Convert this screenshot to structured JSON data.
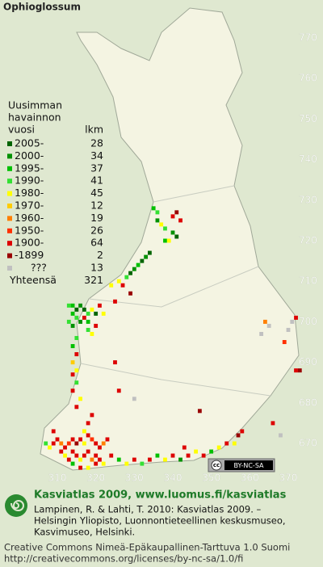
{
  "title": "Ophioglossum",
  "legend": {
    "header": [
      "Uusimman",
      "havainnon",
      "vuosi"
    ],
    "count_header": "lkm",
    "items": [
      {
        "label": "2005-",
        "count": 28,
        "color": "#006400"
      },
      {
        "label": "2000-",
        "count": 34,
        "color": "#009000"
      },
      {
        "label": "1995-",
        "count": 37,
        "color": "#00c000"
      },
      {
        "label": "1990-",
        "count": 41,
        "color": "#33e033"
      },
      {
        "label": "1980-",
        "count": 45,
        "color": "#ffff00"
      },
      {
        "label": "1970-",
        "count": 12,
        "color": "#ffcc00"
      },
      {
        "label": "1960-",
        "count": 19,
        "color": "#ff7f00"
      },
      {
        "label": "1950-",
        "count": 26,
        "color": "#ff3000"
      },
      {
        "label": "1900-",
        "count": 64,
        "color": "#dd0000"
      },
      {
        "label": "-1899",
        "count": 2,
        "color": "#990000"
      },
      {
        "label": "???",
        "count": 13,
        "color": "#c0c0c0"
      }
    ],
    "total": {
      "label": "Yhteensä",
      "count": 321
    }
  },
  "axes": {
    "xlim": [
      310,
      370
    ],
    "ylim": [
      670,
      770
    ],
    "xticks": [
      310,
      320,
      330,
      340,
      350,
      360,
      370
    ],
    "yticks": [
      770,
      760,
      750,
      740,
      730,
      720,
      710,
      700,
      690,
      680,
      670
    ]
  },
  "squares": [
    [
      335,
      728,
      2
    ],
    [
      336,
      727,
      3
    ],
    [
      336,
      725,
      1
    ],
    [
      337,
      724,
      4
    ],
    [
      338,
      723,
      3
    ],
    [
      340,
      726,
      8
    ],
    [
      341,
      727,
      9
    ],
    [
      342,
      725,
      8
    ],
    [
      340,
      722,
      1
    ],
    [
      341,
      721,
      0
    ],
    [
      338,
      720,
      2
    ],
    [
      339,
      720,
      4
    ],
    [
      334,
      717,
      0
    ],
    [
      333,
      716,
      1
    ],
    [
      332,
      715,
      0
    ],
    [
      331,
      714,
      2
    ],
    [
      330,
      713,
      1
    ],
    [
      329,
      712,
      0
    ],
    [
      328,
      711,
      3
    ],
    [
      326,
      710,
      4
    ],
    [
      324,
      709,
      4
    ],
    [
      327,
      709,
      8
    ],
    [
      329,
      707,
      9
    ],
    [
      313,
      704,
      3
    ],
    [
      314,
      704,
      2
    ],
    [
      315,
      703,
      0
    ],
    [
      316,
      704,
      1
    ],
    [
      317,
      703,
      0
    ],
    [
      318,
      702,
      3
    ],
    [
      319,
      703,
      4
    ],
    [
      320,
      702,
      0
    ],
    [
      314,
      702,
      2
    ],
    [
      315,
      701,
      3
    ],
    [
      316,
      700,
      1
    ],
    [
      317,
      701,
      8
    ],
    [
      318,
      700,
      2
    ],
    [
      313,
      700,
      3
    ],
    [
      314,
      699,
      1
    ],
    [
      321,
      704,
      8
    ],
    [
      322,
      702,
      4
    ],
    [
      325,
      705,
      8
    ],
    [
      318,
      698,
      3
    ],
    [
      319,
      697,
      4
    ],
    [
      320,
      699,
      8
    ],
    [
      315,
      696,
      3
    ],
    [
      314,
      694,
      2
    ],
    [
      315,
      692,
      8
    ],
    [
      314,
      690,
      5
    ],
    [
      315,
      688,
      4
    ],
    [
      314,
      687,
      8
    ],
    [
      315,
      685,
      3
    ],
    [
      314,
      683,
      8
    ],
    [
      316,
      681,
      4
    ],
    [
      315,
      679,
      8
    ],
    [
      326,
      683,
      8
    ],
    [
      325,
      690,
      8
    ],
    [
      330,
      681,
      10
    ],
    [
      347,
      678,
      9
    ],
    [
      364,
      700,
      6
    ],
    [
      365,
      699,
      10
    ],
    [
      363,
      697,
      10
    ],
    [
      371,
      700,
      10
    ],
    [
      372,
      701,
      8
    ],
    [
      370,
      698,
      10
    ],
    [
      369,
      695,
      7
    ],
    [
      372,
      688,
      8
    ],
    [
      373,
      688,
      9
    ],
    [
      368,
      672,
      10
    ],
    [
      366,
      675,
      8
    ],
    [
      307,
      670,
      3
    ],
    [
      308,
      669,
      4
    ],
    [
      309,
      670,
      8
    ],
    [
      310,
      671,
      8
    ],
    [
      311,
      670,
      6
    ],
    [
      312,
      669,
      8
    ],
    [
      313,
      670,
      7
    ],
    [
      314,
      671,
      8
    ],
    [
      315,
      670,
      9
    ],
    [
      316,
      671,
      8
    ],
    [
      317,
      670,
      4
    ],
    [
      318,
      672,
      8
    ],
    [
      319,
      671,
      7
    ],
    [
      320,
      670,
      8
    ],
    [
      321,
      669,
      8
    ],
    [
      322,
      670,
      6
    ],
    [
      323,
      671,
      8
    ],
    [
      311,
      668,
      8
    ],
    [
      312,
      667,
      4
    ],
    [
      313,
      666,
      8
    ],
    [
      314,
      668,
      8
    ],
    [
      315,
      667,
      8
    ],
    [
      316,
      666,
      4
    ],
    [
      317,
      667,
      8
    ],
    [
      318,
      668,
      8
    ],
    [
      319,
      666,
      6
    ],
    [
      320,
      667,
      8
    ],
    [
      321,
      666,
      8
    ],
    [
      314,
      665,
      2
    ],
    [
      316,
      664,
      8
    ],
    [
      318,
      664,
      4
    ],
    [
      320,
      665,
      8
    ],
    [
      322,
      665,
      4
    ],
    [
      324,
      667,
      8
    ],
    [
      326,
      666,
      2
    ],
    [
      328,
      665,
      4
    ],
    [
      330,
      666,
      8
    ],
    [
      332,
      665,
      3
    ],
    [
      334,
      666,
      8
    ],
    [
      336,
      667,
      2
    ],
    [
      338,
      666,
      4
    ],
    [
      340,
      667,
      8
    ],
    [
      342,
      666,
      1
    ],
    [
      344,
      667,
      8
    ],
    [
      346,
      668,
      4
    ],
    [
      348,
      667,
      8
    ],
    [
      350,
      668,
      2
    ],
    [
      352,
      669,
      4
    ],
    [
      354,
      670,
      8
    ],
    [
      356,
      670,
      4
    ],
    [
      357,
      672,
      9
    ],
    [
      358,
      673,
      8
    ],
    [
      343,
      669,
      8
    ],
    [
      318,
      675,
      8
    ],
    [
      319,
      677,
      8
    ],
    [
      309,
      673,
      8
    ],
    [
      317,
      673,
      4
    ]
  ],
  "badge": {
    "cc": "cc",
    "text": "BY-NC-SA"
  },
  "footer": {
    "heading": "Kasviatlas 2009, www.luomus.fi/kasviatlas",
    "citation": [
      "Lampinen, R. & Lahti, T. 2010: Kasviatlas 2009. –",
      "Helsingin Yliopisto, Luonnontieteellinen keskusmuseo,",
      "Kasvimuseo, Helsinki."
    ],
    "license": [
      "Creative Commons Nimeä-Epäkaupallinen-Tarttuva 1.0 Suomi",
      "http://creativecommons.org/licenses/by-nc-sa/1.0/fi"
    ]
  }
}
